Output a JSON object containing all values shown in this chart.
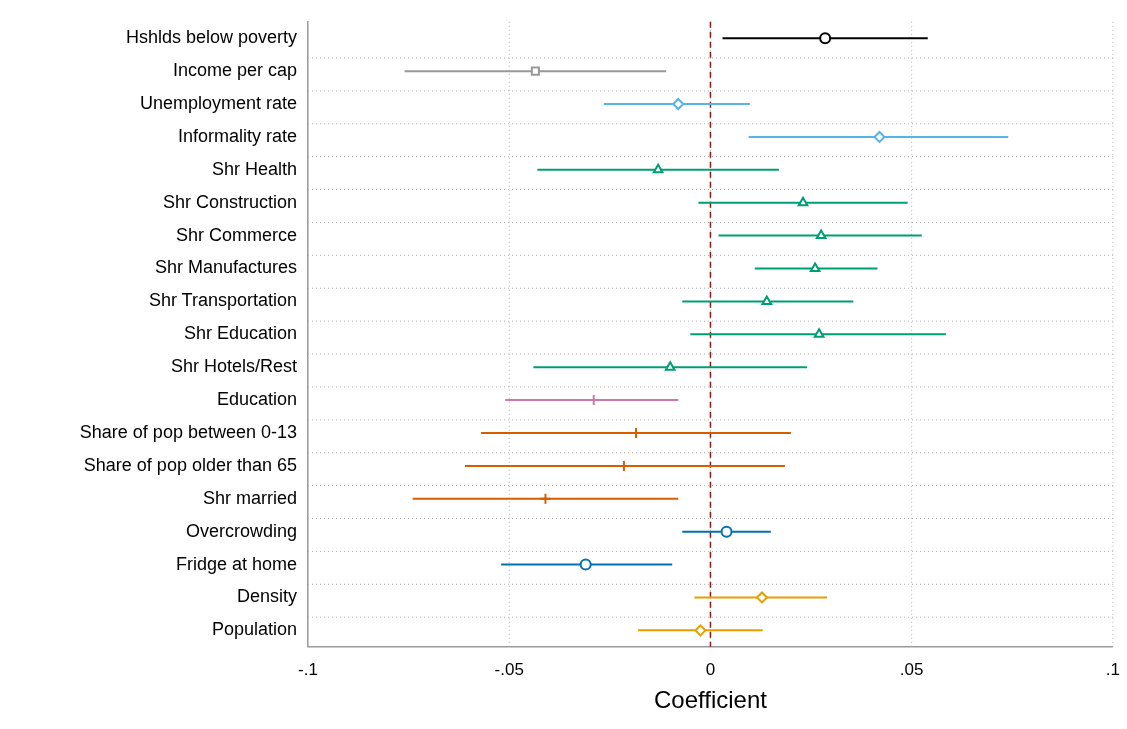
{
  "chart_data": {
    "type": "scatter",
    "orientation": "horizontal",
    "xlabel": "Coefficient",
    "categories": [
      "Hshlds below poverty",
      "Income per cap",
      "Unemployment rate",
      "Informality rate",
      "Shr Health",
      "Shr Construction",
      "Shr Commerce",
      "Shr Manufactures",
      "Shr Transportation",
      "Shr Education",
      "Shr Hotels/Rest",
      "Education",
      "Share of pop between 0-13",
      "Share of pop older than 65",
      "Shr married",
      "Overcrowding",
      "Fridge at home",
      "Density",
      "Population"
    ],
    "series": [
      {
        "color": "#000000",
        "marker": "circle",
        "values": [
          0.0285,
          null,
          null,
          null,
          null,
          null,
          null,
          null,
          null,
          null,
          null,
          null,
          null,
          null,
          null,
          null,
          null,
          null,
          null
        ],
        "errors": [
          [
            0.003,
            0.054
          ],
          null,
          null,
          null,
          null,
          null,
          null,
          null,
          null,
          null,
          null,
          null,
          null,
          null,
          null,
          null,
          null,
          null,
          null
        ]
      },
      {
        "color": "#999999",
        "marker": "square",
        "values": [
          null,
          -0.0435,
          null,
          null,
          null,
          null,
          null,
          null,
          null,
          null,
          null,
          null,
          null,
          null,
          null,
          null,
          null,
          null,
          null
        ],
        "errors": [
          null,
          [
            -0.076,
            -0.011
          ],
          null,
          null,
          null,
          null,
          null,
          null,
          null,
          null,
          null,
          null,
          null,
          null,
          null,
          null,
          null,
          null,
          null
        ]
      },
      {
        "color": "#56b4e9",
        "marker": "diamond",
        "values": [
          null,
          null,
          -0.008,
          0.042,
          null,
          null,
          null,
          null,
          null,
          null,
          null,
          null,
          null,
          null,
          null,
          null,
          null,
          null,
          null
        ],
        "errors": [
          null,
          null,
          [
            -0.0265,
            0.0098
          ],
          [
            0.0095,
            0.074
          ],
          null,
          null,
          null,
          null,
          null,
          null,
          null,
          null,
          null,
          null,
          null,
          null,
          null,
          null,
          null
        ]
      },
      {
        "color": "#009e73",
        "marker": "triangle",
        "values": [
          null,
          null,
          null,
          null,
          -0.013,
          0.023,
          0.0275,
          0.026,
          0.014,
          0.027,
          -0.01,
          null,
          null,
          null,
          null,
          null,
          null,
          null,
          null
        ],
        "errors": [
          null,
          null,
          null,
          null,
          [
            -0.043,
            0.017
          ],
          [
            -0.003,
            0.049
          ],
          [
            0.002,
            0.0525
          ],
          [
            0.011,
            0.0415
          ],
          [
            -0.007,
            0.0355
          ],
          [
            -0.005,
            0.0585
          ],
          [
            -0.044,
            0.024
          ],
          null,
          null,
          null,
          null,
          null,
          null,
          null,
          null
        ]
      },
      {
        "color": "#cc79a7",
        "marker": "cross",
        "values": [
          null,
          null,
          null,
          null,
          null,
          null,
          null,
          null,
          null,
          null,
          null,
          -0.029,
          null,
          null,
          null,
          null,
          null,
          null,
          null
        ],
        "errors": [
          null,
          null,
          null,
          null,
          null,
          null,
          null,
          null,
          null,
          null,
          null,
          [
            -0.051,
            -0.008
          ],
          null,
          null,
          null,
          null,
          null,
          null,
          null
        ]
      },
      {
        "color": "#d55e00",
        "marker": "cross",
        "values": [
          null,
          null,
          null,
          null,
          null,
          null,
          null,
          null,
          null,
          null,
          null,
          null,
          -0.0185,
          -0.0215,
          -0.041,
          null,
          null,
          null,
          null
        ],
        "errors": [
          null,
          null,
          null,
          null,
          null,
          null,
          null,
          null,
          null,
          null,
          null,
          null,
          [
            -0.057,
            0.02
          ],
          [
            -0.061,
            0.0185
          ],
          [
            -0.074,
            -0.008
          ],
          null,
          null,
          null,
          null
        ]
      },
      {
        "color": "#0072b2",
        "marker": "circle",
        "values": [
          null,
          null,
          null,
          null,
          null,
          null,
          null,
          null,
          null,
          null,
          null,
          null,
          null,
          null,
          null,
          0.004,
          -0.031,
          null,
          null
        ],
        "errors": [
          null,
          null,
          null,
          null,
          null,
          null,
          null,
          null,
          null,
          null,
          null,
          null,
          null,
          null,
          null,
          [
            -0.007,
            0.015
          ],
          [
            -0.052,
            -0.0095
          ],
          null,
          null
        ]
      },
      {
        "color": "#e69f00",
        "marker": "diamond",
        "values": [
          null,
          null,
          null,
          null,
          null,
          null,
          null,
          null,
          null,
          null,
          null,
          null,
          null,
          null,
          null,
          null,
          null,
          0.0128,
          -0.0025
        ],
        "errors": [
          null,
          null,
          null,
          null,
          null,
          null,
          null,
          null,
          null,
          null,
          null,
          null,
          null,
          null,
          null,
          null,
          null,
          [
            -0.004,
            0.029
          ],
          [
            -0.018,
            0.013
          ]
        ]
      }
    ],
    "xlim": [
      -0.1,
      0.1
    ],
    "xticks": [
      {
        "value": -0.1,
        "label": "-.1"
      },
      {
        "value": -0.05,
        "label": "-.05"
      },
      {
        "value": 0,
        "label": "0"
      },
      {
        "value": 0.05,
        "label": ".05"
      },
      {
        "value": 0.1,
        "label": ".1"
      }
    ],
    "ref_lines": [
      {
        "axis": "x",
        "value": 0,
        "color": "#8b1a1a",
        "line_style": "dashed"
      }
    ],
    "grid": true,
    "legend": false
  }
}
